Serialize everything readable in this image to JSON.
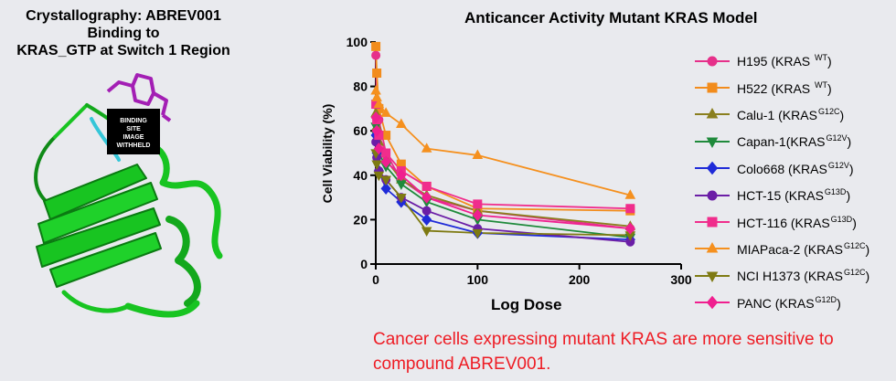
{
  "left_panel": {
    "title_lines": [
      "Crystallography:  ABREV001",
      "Binding to",
      "KRAS_GTP at Switch 1 Region"
    ],
    "placeholder_lines": [
      "BINDING",
      "SITE",
      "IMAGE",
      "WITHHELD"
    ],
    "colors": {
      "protein": "#18c421",
      "ligand": "#a31fb4",
      "switch": "#35c6d8"
    }
  },
  "footer_note": "Cancer cells expressing mutant KRAS are more sensitive to compound ABREV001.",
  "chart_data": {
    "type": "line",
    "title": "Anticancer Activity  Mutant KRAS Model",
    "xlabel": "Log Dose",
    "ylabel": "Cell Viability (%)",
    "xlim": [
      0,
      300
    ],
    "ylim": [
      0,
      100
    ],
    "xticks": [
      0,
      100,
      200,
      300
    ],
    "yticks": [
      0,
      20,
      40,
      60,
      80,
      100
    ],
    "grid": false,
    "legend_position": "right",
    "x": [
      0.1,
      1,
      3,
      10,
      25,
      50,
      100,
      250
    ],
    "series": [
      {
        "name": "H195",
        "sup": "WT",
        "color": "#e6308a",
        "marker": "circle",
        "values": [
          94,
          72,
          65,
          50,
          38,
          30,
          24,
          16
        ]
      },
      {
        "name": "H522",
        "sup": "WT",
        "color": "#f28c1c",
        "marker": "square",
        "values": [
          98,
          86,
          70,
          58,
          45,
          35,
          25,
          24
        ]
      },
      {
        "name": "Calu-1",
        "sup": "G12C",
        "color": "#8a7f1e",
        "marker": "triangle",
        "values": [
          68,
          62,
          55,
          47,
          38,
          31,
          24,
          17
        ]
      },
      {
        "name": "Capan-1",
        "sup": "G12V",
        "color": "#1f8a3b",
        "marker": "triangle-down",
        "values": [
          62,
          58,
          50,
          44,
          36,
          28,
          20,
          12
        ]
      },
      {
        "name": "Colo668",
        "sup": "G12V",
        "color": "#1f2bd8",
        "marker": "diamond",
        "values": [
          58,
          50,
          42,
          34,
          28,
          20,
          14,
          11
        ]
      },
      {
        "name": "HCT-15",
        "sup": "G13D",
        "color": "#6b1ea6",
        "marker": "circle",
        "values": [
          55,
          48,
          42,
          38,
          30,
          24,
          16,
          10
        ]
      },
      {
        "name": "HCT-116",
        "sup": "G13D",
        "color": "#f02d8c",
        "marker": "square",
        "values": [
          72,
          65,
          58,
          50,
          42,
          35,
          27,
          25
        ]
      },
      {
        "name": "MIAPaca-2",
        "sup": "G12C",
        "color": "#f5901e",
        "marker": "triangle",
        "values": [
          78,
          75,
          72,
          68,
          63,
          52,
          49,
          31
        ]
      },
      {
        "name": "NCI H1373",
        "sup": "G12C",
        "color": "#7e7a12",
        "marker": "triangle-down",
        "values": [
          50,
          45,
          40,
          38,
          30,
          15,
          14,
          13
        ]
      },
      {
        "name": "PANC",
        "sup": "G12D",
        "color": "#f01f8f",
        "marker": "diamond",
        "values": [
          66,
          60,
          52,
          46,
          40,
          30,
          22,
          16
        ]
      }
    ]
  }
}
